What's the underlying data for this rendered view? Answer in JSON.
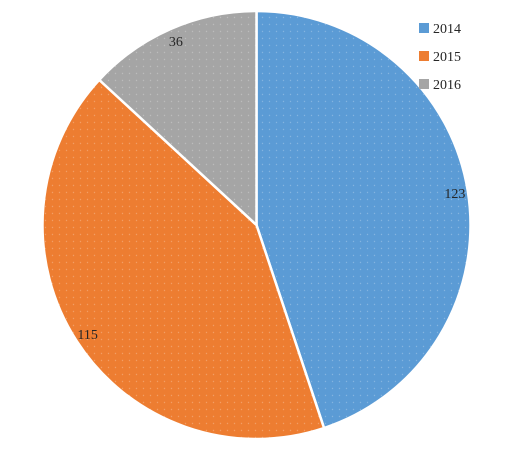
{
  "chart_data": {
    "type": "pie",
    "title": "",
    "categories": [
      "2014",
      "2015",
      "2016"
    ],
    "values": [
      123,
      115,
      36
    ],
    "colors": [
      "#5b9bd5",
      "#ed7d31",
      "#a5a5a5"
    ],
    "data_labels": [
      "123",
      "115",
      "36"
    ],
    "legend": {
      "position": "top-right",
      "entries": [
        "2014",
        "2015",
        "2016"
      ]
    },
    "start_angle": "12 o'clock",
    "direction": "clockwise"
  }
}
